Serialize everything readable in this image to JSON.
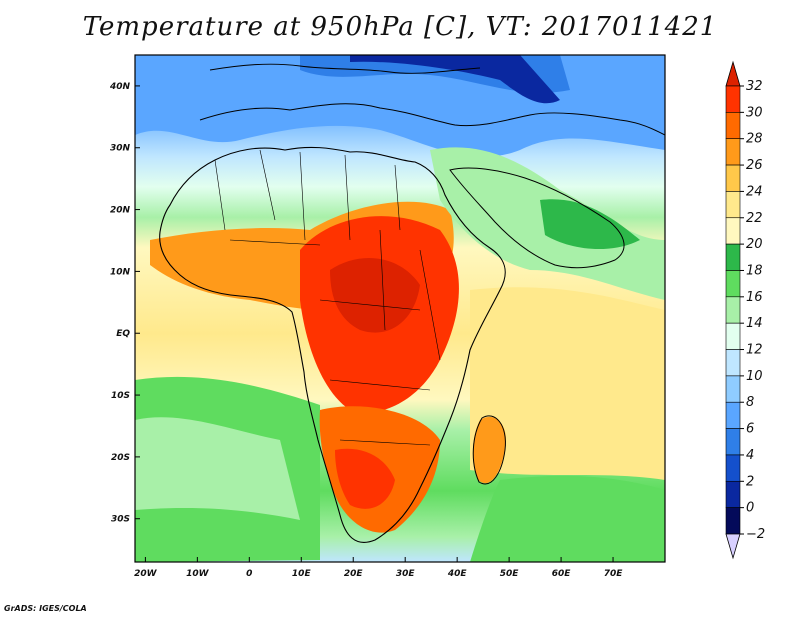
{
  "title": "Temperature at 950hPa [C], VT: 2017011421",
  "footer": "GrADS: IGES/COLA",
  "map": {
    "projection": "lat-lon",
    "lon_range": [
      -22,
      80
    ],
    "lat_range": [
      -37,
      45
    ],
    "lon_ticks": [
      {
        "value": -20,
        "label": "20W"
      },
      {
        "value": -10,
        "label": "10W"
      },
      {
        "value": 0,
        "label": "0"
      },
      {
        "value": 10,
        "label": "10E"
      },
      {
        "value": 20,
        "label": "20E"
      },
      {
        "value": 30,
        "label": "30E"
      },
      {
        "value": 40,
        "label": "40E"
      },
      {
        "value": 50,
        "label": "50E"
      },
      {
        "value": 60,
        "label": "60E"
      },
      {
        "value": 70,
        "label": "70E"
      }
    ],
    "lat_ticks": [
      {
        "value": 40,
        "label": "40N"
      },
      {
        "value": 30,
        "label": "30N"
      },
      {
        "value": 20,
        "label": "20N"
      },
      {
        "value": 10,
        "label": "10N"
      },
      {
        "value": 0,
        "label": "EQ"
      },
      {
        "value": -10,
        "label": "10S"
      },
      {
        "value": -20,
        "label": "20S"
      },
      {
        "value": -30,
        "label": "30S"
      }
    ]
  },
  "colorbar": {
    "levels": [
      {
        "label": "32",
        "color": "#dd2200"
      },
      {
        "label": "30",
        "color": "#ff3300"
      },
      {
        "label": "28",
        "color": "#ff6a00"
      },
      {
        "label": "26",
        "color": "#ff9a1a"
      },
      {
        "label": "24",
        "color": "#ffc84a"
      },
      {
        "label": "22",
        "color": "#ffe98c"
      },
      {
        "label": "20",
        "color": "#fff8bf"
      },
      {
        "label": "18",
        "color": "#2db84a"
      },
      {
        "label": "16",
        "color": "#5fdc5f"
      },
      {
        "label": "14",
        "color": "#a8f0a8"
      },
      {
        "label": "12",
        "color": "#e2ffef"
      },
      {
        "label": "10",
        "color": "#bfe6ff"
      },
      {
        "label": "8",
        "color": "#8fccff"
      },
      {
        "label": "6",
        "color": "#5aa6ff"
      },
      {
        "label": "4",
        "color": "#2f7fe8"
      },
      {
        "label": "2",
        "color": "#1450cc"
      },
      {
        "label": "0",
        "color": "#0a28a0"
      },
      {
        "label": "−2",
        "color": "#040a5a"
      }
    ],
    "over_color": "#dd2200",
    "under_color": "#d8d0ff"
  },
  "regions": [
    {
      "name": "north-hot-blue",
      "color": "#2f7fe8"
    },
    {
      "name": "sahel-warm",
      "color": "#ff9a1a"
    },
    {
      "name": "central-hot",
      "color": "#ff3300"
    },
    {
      "name": "south-hot",
      "color": "#ff6a00"
    },
    {
      "name": "ocean-south",
      "color": "#5fdc5f"
    },
    {
      "name": "ocean-indian",
      "color": "#ffe98c"
    }
  ]
}
